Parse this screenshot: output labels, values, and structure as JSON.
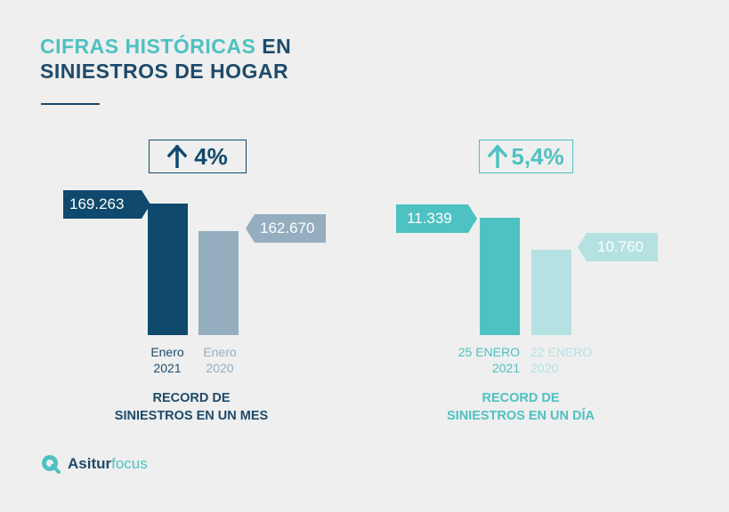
{
  "title": {
    "line1_accent": "CIFRAS HISTÓRICAS",
    "line1_rest": " EN",
    "line2": "SINIESTROS DE HOGAR"
  },
  "colors": {
    "navy": "#0f4a6e",
    "navy_light": "#94aebf",
    "teal": "#4ec1c2",
    "teal_light": "#b5e1e2",
    "text_dark": "#1d4a6b"
  },
  "chart_data": [
    {
      "type": "bar",
      "categories": [
        "Enero 2021",
        "Enero 2020"
      ],
      "values": [
        169263,
        162670
      ],
      "value_labels": [
        "169.263",
        "162.670"
      ],
      "category_labels": [
        [
          "Enero",
          "2021"
        ],
        [
          "Enero",
          "2020"
        ]
      ],
      "change": "4%",
      "caption": [
        "RECORD DE",
        "SINIESTROS EN UN MES"
      ]
    },
    {
      "type": "bar",
      "categories": [
        "25 ENERO 2021",
        "22 ENERO 2020"
      ],
      "values": [
        11339,
        10760
      ],
      "value_labels": [
        "11.339",
        "10.760"
      ],
      "category_labels": [
        [
          "25 ENERO",
          "2021"
        ],
        [
          "22 ENERO",
          "2020"
        ]
      ],
      "change": "5,4%",
      "caption": [
        "RECORD DE",
        "SINIESTROS EN UN DÍA"
      ]
    }
  ],
  "logo": {
    "brand_bold": "Asitur",
    "brand_light": "focus",
    "icon": "q-magnifier-icon"
  }
}
